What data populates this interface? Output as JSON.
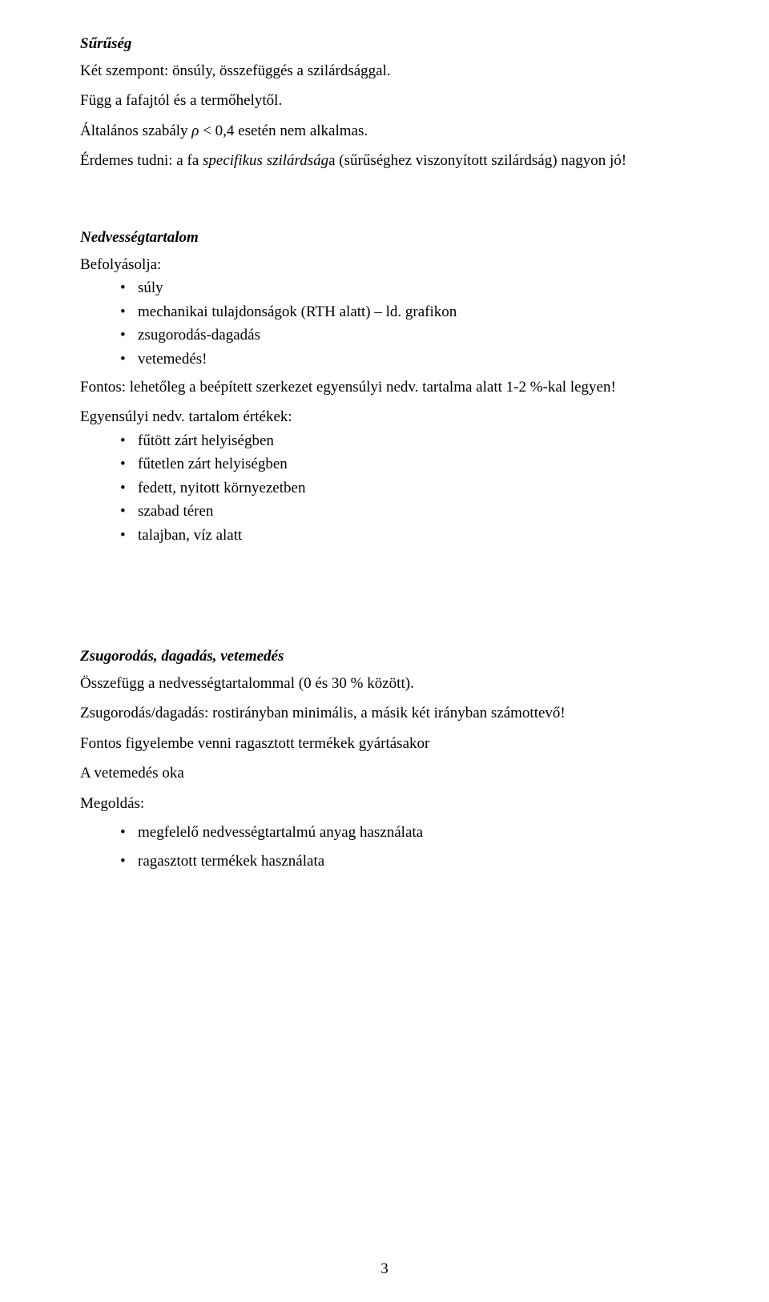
{
  "section1": {
    "heading": "Sűrűség",
    "p1": "Két szempont: önsúly, összefüggés a szilárdsággal.",
    "p2": "Függ a fafajtól és a termőhelytől.",
    "p3_pre": "Általános szabály ",
    "p3_rho": "ρ",
    "p3_post": " < 0,4 esetén nem alkalmas.",
    "p4_pre": "Érdemes tudni: a fa ",
    "p4_em": "specifikus szilárdság",
    "p4_post": "a (sűrűséghez viszonyított szilárdság) nagyon jó!"
  },
  "section2": {
    "heading": "Nedvességtartalom",
    "intro": "Befolyásolja:",
    "list1": {
      "i0": "súly",
      "i1": "mechanikai tulajdonságok (RTH alatt) – ld. grafikon",
      "i2": "zsugorodás-dagadás",
      "i3": "vetemedés!"
    },
    "p1": "Fontos: lehetőleg a beépített szerkezet egyensúlyi nedv. tartalma alatt 1-2 %-kal legyen!",
    "p2": "Egyensúlyi nedv. tartalom értékek:",
    "list2": {
      "i0": "fűtött zárt helyiségben",
      "i1": "fűtetlen zárt helyiségben",
      "i2": "fedett, nyitott környezetben",
      "i3": "szabad téren",
      "i4": "talajban, víz alatt"
    }
  },
  "section3": {
    "heading": "Zsugorodás, dagadás, vetemedés",
    "p1": "Összefügg a nedvességtartalommal (0 és 30 % között).",
    "p2": "Zsugorodás/dagadás: rostirányban minimális, a másik két irányban számottevő!",
    "p3": "Fontos figyelembe venni ragasztott termékek gyártásakor",
    "p4": "A vetemedés oka",
    "p5": "Megoldás:",
    "list": {
      "i0": "megfelelő nedvességtartalmú anyag használata",
      "i1": "ragasztott termékek használata"
    }
  },
  "pageNumber": "3"
}
